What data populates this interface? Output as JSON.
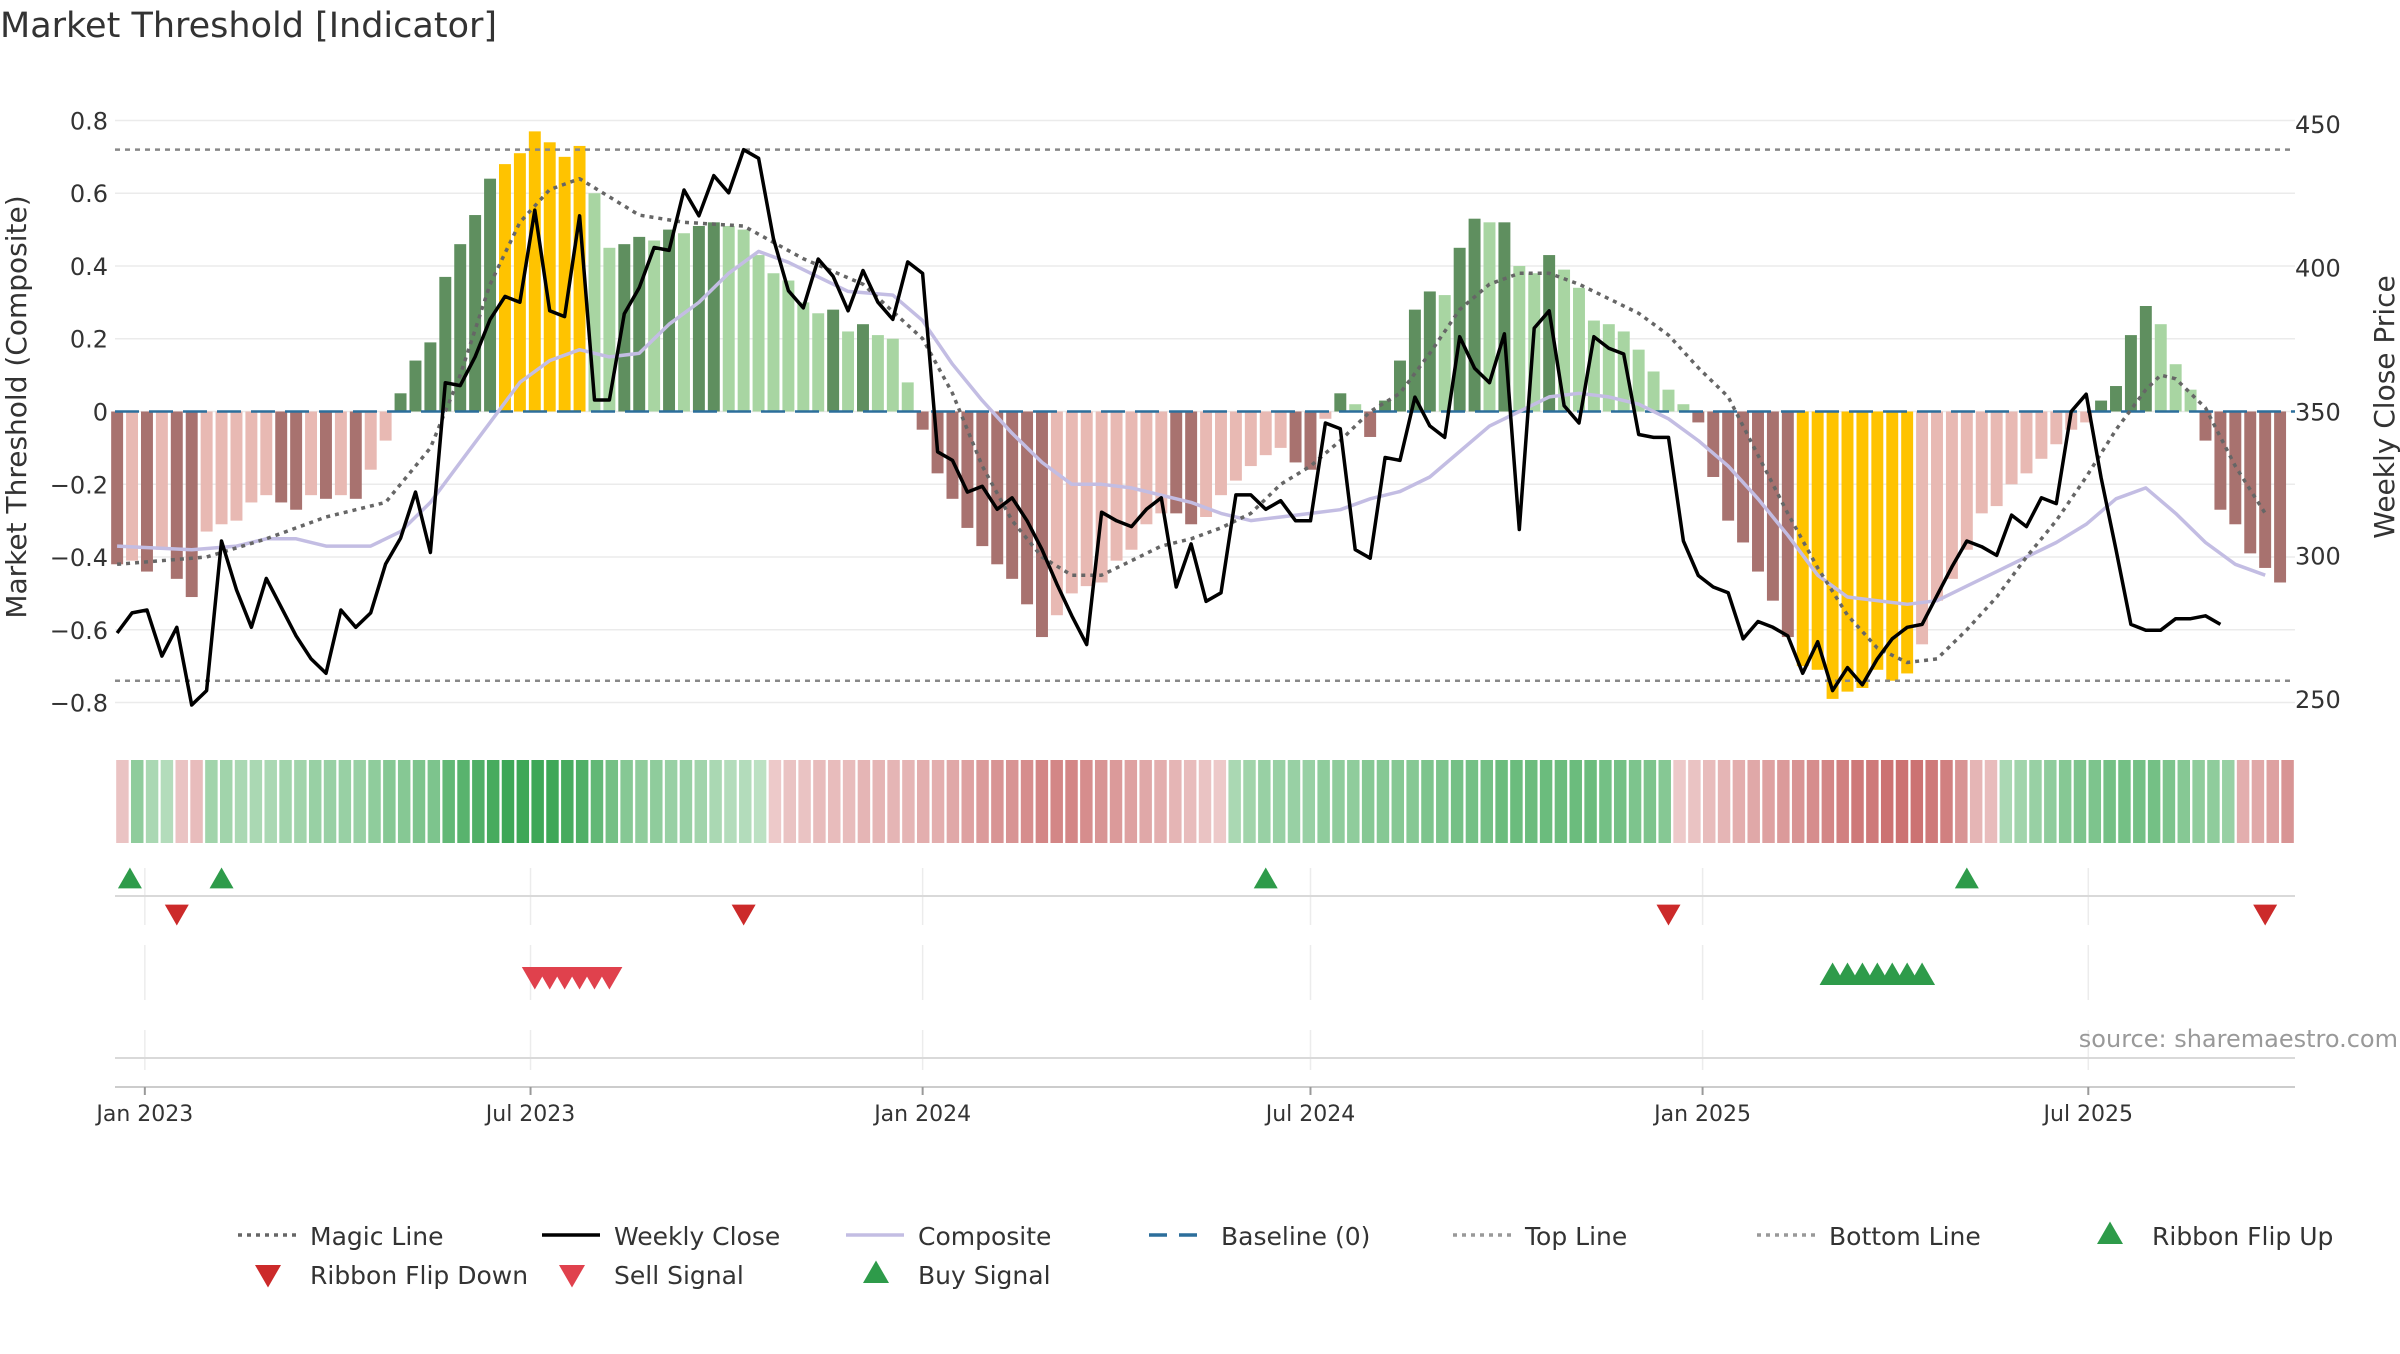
{
  "title": "Market Threshold [Indicator]",
  "source": "source: sharemaestro.com",
  "colors": {
    "pos_strong": "#5f8f5f",
    "pos_light": "#a8d5a2",
    "neg_strong": "#a8726f",
    "neg_light": "#e8b9b3",
    "extreme": "#ffc300",
    "magic": "#666666",
    "weekly": "#000000",
    "composite": "#c3bde3",
    "baseline": "#2c6e9b",
    "ribbon_green": "#35a34f",
    "ribbon_red": "#c45e5e",
    "flip_up": "#2e9b4a",
    "flip_down": "#cc2a2a",
    "sell": "#e0414d",
    "buy": "#2e9b4a"
  },
  "chart_data": {
    "type": "bar",
    "y_left": {
      "label": "Market Threshold (Composite)",
      "range": [
        -0.87,
        0.87
      ],
      "ticks": [
        -0.8,
        -0.6,
        -0.4,
        -0.2,
        0,
        0.2,
        0.4,
        0.6,
        0.8
      ],
      "tick_labels": [
        "−0.8",
        "−0.6",
        "−0.4",
        "−0.2",
        "0",
        "0.2",
        "0.4",
        "0.6",
        "0.8"
      ]
    },
    "y_right": {
      "label": "Weekly Close Price",
      "range": [
        240,
        460
      ],
      "ticks": [
        250,
        300,
        350,
        400,
        450
      ],
      "tick_labels": [
        "250",
        "300",
        "350",
        "400",
        "450"
      ]
    },
    "x_axis": {
      "range": [
        "2022-12-18",
        "2025-10-06"
      ],
      "ticks": [
        "2023-01-01",
        "2023-07-01",
        "2024-01-01",
        "2024-07-01",
        "2025-01-01",
        "2025-07-01"
      ],
      "tick_labels": [
        "Jan 2023",
        "Jul 2023",
        "Jan 2024",
        "Jul 2024",
        "Jan 2025",
        "Jul 2025"
      ]
    },
    "top_line": 0.72,
    "bottom_line": -0.74,
    "weeks": {
      "start": "2022-12-19",
      "step_days": 7,
      "composite_bars": [
        -0.42,
        -0.41,
        -0.44,
        -0.38,
        -0.46,
        -0.51,
        -0.33,
        -0.31,
        -0.3,
        -0.25,
        -0.23,
        -0.25,
        -0.27,
        -0.23,
        -0.24,
        -0.23,
        -0.24,
        -0.16,
        -0.08,
        0.05,
        0.14,
        0.19,
        0.37,
        0.46,
        0.54,
        0.64,
        0.68,
        0.71,
        0.77,
        0.74,
        0.7,
        0.73,
        0.6,
        0.45,
        0.46,
        0.48,
        0.47,
        0.5,
        0.49,
        0.51,
        0.52,
        0.51,
        0.5,
        0.43,
        0.38,
        0.36,
        0.3,
        0.27,
        0.28,
        0.22,
        0.24,
        0.21,
        0.2,
        0.08,
        -0.05,
        -0.17,
        -0.24,
        -0.32,
        -0.37,
        -0.42,
        -0.46,
        -0.53,
        -0.62,
        -0.56,
        -0.5,
        -0.48,
        -0.47,
        -0.41,
        -0.38,
        -0.31,
        -0.28,
        -0.28,
        -0.31,
        -0.29,
        -0.23,
        -0.19,
        -0.15,
        -0.12,
        -0.1,
        -0.14,
        -0.16,
        -0.02,
        0.05,
        0.02,
        -0.07,
        0.03,
        0.14,
        0.28,
        0.33,
        0.32,
        0.45,
        0.53,
        0.52,
        0.52,
        0.4,
        0.38,
        0.43,
        0.39,
        0.34,
        0.25,
        0.24,
        0.22,
        0.17,
        0.11,
        0.06,
        0.02,
        -0.03,
        -0.18,
        -0.3,
        -0.36,
        -0.44,
        -0.52,
        -0.62,
        -0.7,
        -0.71,
        -0.79,
        -0.77,
        -0.76,
        -0.71,
        -0.74,
        -0.72,
        -0.64,
        -0.52,
        -0.46,
        -0.38,
        -0.28,
        -0.26,
        -0.2,
        -0.17,
        -0.13,
        -0.09,
        -0.05,
        -0.03,
        0.03,
        0.07,
        0.21,
        0.29,
        0.24,
        0.13,
        0.06,
        -0.08,
        -0.27,
        -0.31,
        -0.39,
        -0.43,
        -0.47
      ],
      "weekly_close": [
        273,
        280,
        281,
        265,
        275,
        248,
        253,
        305,
        288,
        275,
        292,
        282,
        272,
        264,
        259,
        281,
        275,
        280,
        297,
        306,
        322,
        301,
        360,
        359,
        369,
        382,
        390,
        388,
        420,
        385,
        383,
        418,
        354,
        354,
        384,
        393,
        407,
        406,
        427,
        418,
        432,
        426,
        441,
        438,
        410,
        392,
        386,
        403,
        397,
        385,
        399,
        388,
        382,
        402,
        398,
        336,
        333,
        322,
        324,
        316,
        320,
        312,
        302,
        290,
        279,
        269,
        315,
        312,
        310,
        316,
        320,
        289,
        304,
        284,
        287,
        321,
        321,
        316,
        319,
        312,
        312,
        346,
        344,
        302,
        299,
        334,
        333,
        355,
        345,
        341,
        376,
        365,
        360,
        377,
        309,
        379,
        385,
        352,
        346,
        376,
        372,
        370,
        342,
        341,
        341,
        305,
        293,
        289,
        287,
        271,
        277,
        275,
        272,
        259,
        270,
        253,
        261,
        255,
        264,
        271,
        275,
        276,
        286,
        296,
        305,
        303,
        300,
        314,
        310,
        320,
        318,
        350,
        356,
        327,
        302,
        276,
        274,
        274,
        278,
        278,
        279,
        276
      ]
    },
    "magic_line": [
      [
        0,
        -0.42
      ],
      [
        6,
        -0.4
      ],
      [
        10,
        -0.35
      ],
      [
        14,
        -0.29
      ],
      [
        18,
        -0.25
      ],
      [
        21,
        -0.1
      ],
      [
        23,
        0.1
      ],
      [
        25,
        0.35
      ],
      [
        27,
        0.52
      ],
      [
        29,
        0.61
      ],
      [
        31,
        0.64
      ],
      [
        33,
        0.59
      ],
      [
        35,
        0.54
      ],
      [
        38,
        0.52
      ],
      [
        42,
        0.51
      ],
      [
        46,
        0.42
      ],
      [
        50,
        0.35
      ],
      [
        54,
        0.2
      ],
      [
        56,
        0.05
      ],
      [
        58,
        -0.15
      ],
      [
        60,
        -0.3
      ],
      [
        62,
        -0.4
      ],
      [
        64,
        -0.45
      ],
      [
        66,
        -0.45
      ],
      [
        68,
        -0.41
      ],
      [
        70,
        -0.37
      ],
      [
        72,
        -0.35
      ],
      [
        74,
        -0.32
      ],
      [
        76,
        -0.28
      ],
      [
        78,
        -0.2
      ],
      [
        80,
        -0.15
      ],
      [
        82,
        -0.08
      ],
      [
        84,
        0.0
      ],
      [
        86,
        0.05
      ],
      [
        88,
        0.16
      ],
      [
        90,
        0.28
      ],
      [
        92,
        0.35
      ],
      [
        94,
        0.38
      ],
      [
        96,
        0.38
      ],
      [
        98,
        0.35
      ],
      [
        100,
        0.31
      ],
      [
        102,
        0.27
      ],
      [
        104,
        0.21
      ],
      [
        106,
        0.12
      ],
      [
        108,
        0.04
      ],
      [
        110,
        -0.12
      ],
      [
        112,
        -0.28
      ],
      [
        114,
        -0.43
      ],
      [
        116,
        -0.56
      ],
      [
        118,
        -0.65
      ],
      [
        120,
        -0.69
      ],
      [
        122,
        -0.68
      ],
      [
        124,
        -0.6
      ],
      [
        126,
        -0.51
      ],
      [
        128,
        -0.4
      ],
      [
        130,
        -0.3
      ],
      [
        132,
        -0.18
      ],
      [
        134,
        -0.05
      ],
      [
        136,
        0.06
      ],
      [
        137,
        0.1
      ],
      [
        138,
        0.09
      ],
      [
        140,
        0.01
      ],
      [
        142,
        -0.15
      ],
      [
        144,
        -0.28
      ]
    ],
    "composite_line": [
      [
        0,
        -0.37
      ],
      [
        5,
        -0.38
      ],
      [
        8,
        -0.37
      ],
      [
        10,
        -0.35
      ],
      [
        12,
        -0.35
      ],
      [
        14,
        -0.37
      ],
      [
        17,
        -0.37
      ],
      [
        19,
        -0.33
      ],
      [
        21,
        -0.25
      ],
      [
        23,
        -0.14
      ],
      [
        25,
        -0.03
      ],
      [
        27,
        0.08
      ],
      [
        29,
        0.14
      ],
      [
        31,
        0.17
      ],
      [
        33,
        0.15
      ],
      [
        35,
        0.16
      ],
      [
        37,
        0.24
      ],
      [
        39,
        0.3
      ],
      [
        41,
        0.38
      ],
      [
        43,
        0.44
      ],
      [
        45,
        0.41
      ],
      [
        47,
        0.37
      ],
      [
        49,
        0.33
      ],
      [
        52,
        0.32
      ],
      [
        54,
        0.25
      ],
      [
        56,
        0.13
      ],
      [
        58,
        0.03
      ],
      [
        60,
        -0.06
      ],
      [
        62,
        -0.14
      ],
      [
        64,
        -0.2
      ],
      [
        66,
        -0.2
      ],
      [
        68,
        -0.21
      ],
      [
        70,
        -0.23
      ],
      [
        72,
        -0.25
      ],
      [
        74,
        -0.28
      ],
      [
        76,
        -0.3
      ],
      [
        78,
        -0.29
      ],
      [
        80,
        -0.28
      ],
      [
        82,
        -0.27
      ],
      [
        84,
        -0.24
      ],
      [
        86,
        -0.22
      ],
      [
        88,
        -0.18
      ],
      [
        90,
        -0.11
      ],
      [
        92,
        -0.04
      ],
      [
        94,
        0.0
      ],
      [
        96,
        0.04
      ],
      [
        98,
        0.05
      ],
      [
        100,
        0.04
      ],
      [
        102,
        0.02
      ],
      [
        104,
        -0.02
      ],
      [
        106,
        -0.08
      ],
      [
        108,
        -0.15
      ],
      [
        110,
        -0.24
      ],
      [
        112,
        -0.34
      ],
      [
        114,
        -0.45
      ],
      [
        116,
        -0.51
      ],
      [
        118,
        -0.52
      ],
      [
        120,
        -0.53
      ],
      [
        122,
        -0.52
      ],
      [
        124,
        -0.48
      ],
      [
        126,
        -0.44
      ],
      [
        128,
        -0.4
      ],
      [
        130,
        -0.36
      ],
      [
        132,
        -0.31
      ],
      [
        134,
        -0.24
      ],
      [
        136,
        -0.21
      ],
      [
        138,
        -0.28
      ],
      [
        140,
        -0.36
      ],
      [
        142,
        -0.42
      ],
      [
        144,
        -0.45
      ]
    ],
    "ribbon": [
      -0.25,
      0.5,
      0.35,
      0.3,
      -0.25,
      -0.3,
      0.4,
      0.4,
      0.35,
      0.35,
      0.35,
      0.4,
      0.4,
      0.45,
      0.45,
      0.45,
      0.45,
      0.5,
      0.55,
      0.55,
      0.6,
      0.6,
      0.75,
      0.8,
      0.85,
      0.9,
      0.95,
      0.95,
      0.95,
      0.95,
      0.9,
      0.85,
      0.75,
      0.65,
      0.55,
      0.5,
      0.5,
      0.45,
      0.45,
      0.4,
      0.35,
      0.3,
      0.3,
      0.25,
      -0.2,
      -0.25,
      -0.25,
      -0.3,
      -0.3,
      -0.3,
      -0.35,
      -0.35,
      -0.35,
      -0.35,
      -0.4,
      -0.4,
      -0.45,
      -0.5,
      -0.55,
      -0.6,
      -0.6,
      -0.65,
      -0.7,
      -0.7,
      -0.7,
      -0.65,
      -0.6,
      -0.55,
      -0.5,
      -0.45,
      -0.4,
      -0.35,
      -0.3,
      -0.25,
      -0.2,
      0.35,
      0.4,
      0.45,
      0.45,
      0.45,
      0.45,
      0.5,
      0.5,
      0.5,
      0.55,
      0.55,
      0.55,
      0.55,
      0.6,
      0.6,
      0.65,
      0.65,
      0.65,
      0.7,
      0.7,
      0.7,
      0.7,
      0.7,
      0.7,
      0.7,
      0.65,
      0.65,
      0.6,
      0.6,
      0.55,
      -0.2,
      -0.25,
      -0.3,
      -0.35,
      -0.4,
      -0.45,
      -0.5,
      -0.55,
      -0.6,
      -0.65,
      -0.7,
      -0.75,
      -0.8,
      -0.8,
      -0.85,
      -0.85,
      -0.85,
      -0.8,
      -0.75,
      -0.6,
      -0.35,
      -0.3,
      0.35,
      0.4,
      0.45,
      0.5,
      0.55,
      0.6,
      0.6,
      0.65,
      0.65,
      0.65,
      0.65,
      0.6,
      0.55,
      0.5,
      0.5,
      0.45,
      -0.4,
      -0.45,
      -0.5,
      -0.6
    ],
    "ribbon_flip_up": [
      "2022-12-25",
      "2023-02-06",
      "2024-06-10",
      "2025-05-05"
    ],
    "ribbon_flip_down": [
      "2023-01-16",
      "2023-10-09",
      "2024-12-16",
      "2025-09-22"
    ],
    "sell_signal": [
      "2023-07-03",
      "2023-07-10",
      "2023-07-17",
      "2023-07-24",
      "2023-07-31",
      "2023-08-07"
    ],
    "buy_signal": [
      "2025-03-03",
      "2025-03-10",
      "2025-03-17",
      "2025-03-24",
      "2025-03-31",
      "2025-04-07",
      "2025-04-14"
    ],
    "legend_placement": "bottom",
    "legend": [
      {
        "label": "Magic Line",
        "kind": "dotted",
        "color": "#666666"
      },
      {
        "label": "Weekly Close",
        "kind": "solid",
        "color": "#000000"
      },
      {
        "label": "Composite",
        "kind": "solid",
        "color": "#c3bde3"
      },
      {
        "label": "Baseline (0)",
        "kind": "dashed",
        "color": "#2c6e9b"
      },
      {
        "label": "Top Line",
        "kind": "dotted",
        "color": "#999999"
      },
      {
        "label": "Bottom Line",
        "kind": "dotted",
        "color": "#999999"
      },
      {
        "label": "Ribbon Flip Up",
        "kind": "tri-up",
        "color": "#2e9b4a"
      },
      {
        "label": "Ribbon Flip Down",
        "kind": "tri-down",
        "color": "#cc2a2a"
      },
      {
        "label": "Sell Signal",
        "kind": "tri-down",
        "color": "#e0414d"
      },
      {
        "label": "Buy Signal",
        "kind": "tri-up",
        "color": "#2e9b4a"
      }
    ]
  }
}
